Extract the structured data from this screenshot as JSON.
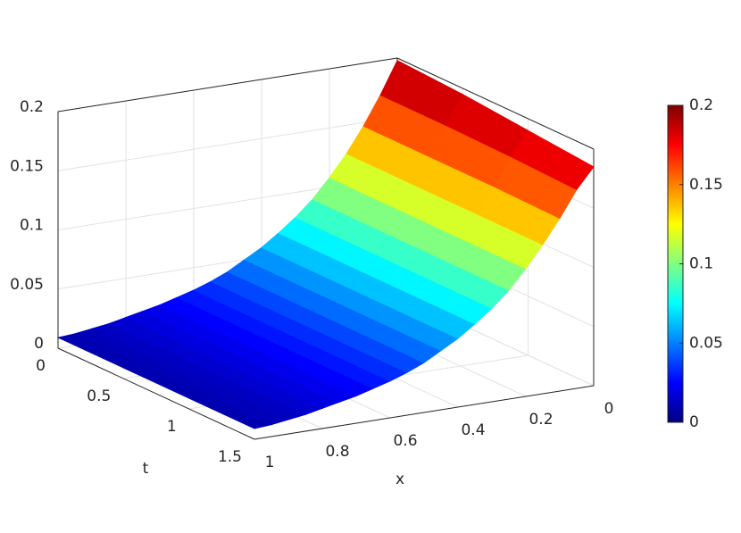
{
  "chart_data": {
    "type": "surface",
    "xlabel": "x",
    "ylabel": "t",
    "colormap": "jet",
    "grid": true,
    "x": [
      0,
      0.05,
      0.1,
      0.15,
      0.2,
      0.25,
      0.3,
      0.35,
      0.4,
      0.45,
      0.5,
      0.55,
      0.6,
      0.65,
      0.7,
      0.75,
      0.8,
      0.85,
      0.9,
      0.95,
      1
    ],
    "t": [
      0,
      0.5,
      1,
      1.5
    ],
    "z": [
      [
        0.198,
        0.171,
        0.147,
        0.126,
        0.108,
        0.092,
        0.079,
        0.068,
        0.058,
        0.05,
        0.042,
        0.036,
        0.031,
        0.027,
        0.023,
        0.02,
        0.017,
        0.014,
        0.012,
        0.01,
        0.009
      ],
      [
        0.195,
        0.171,
        0.147,
        0.126,
        0.108,
        0.092,
        0.079,
        0.068,
        0.058,
        0.05,
        0.042,
        0.036,
        0.031,
        0.027,
        0.023,
        0.02,
        0.017,
        0.014,
        0.012,
        0.01,
        0.009
      ],
      [
        0.19,
        0.17,
        0.147,
        0.126,
        0.108,
        0.092,
        0.079,
        0.068,
        0.058,
        0.05,
        0.042,
        0.036,
        0.031,
        0.027,
        0.023,
        0.02,
        0.017,
        0.014,
        0.012,
        0.01,
        0.009
      ],
      [
        0.185,
        0.168,
        0.146,
        0.126,
        0.108,
        0.092,
        0.079,
        0.068,
        0.058,
        0.05,
        0.042,
        0.036,
        0.031,
        0.027,
        0.023,
        0.02,
        0.017,
        0.014,
        0.012,
        0.01,
        0.009
      ]
    ],
    "xlim": [
      0,
      1
    ],
    "xticks": [
      0,
      0.2,
      0.4,
      0.6,
      0.8,
      1
    ],
    "ylim": [
      0,
      1.5
    ],
    "yticks": [
      0,
      0.5,
      1,
      1.5
    ],
    "zlim": [
      0,
      0.2
    ],
    "zticks": [
      0,
      0.05,
      0.1,
      0.15,
      0.2
    ],
    "clim": [
      0,
      0.2
    ],
    "cticks": [
      0,
      0.05,
      0.1,
      0.15,
      0.2
    ]
  }
}
